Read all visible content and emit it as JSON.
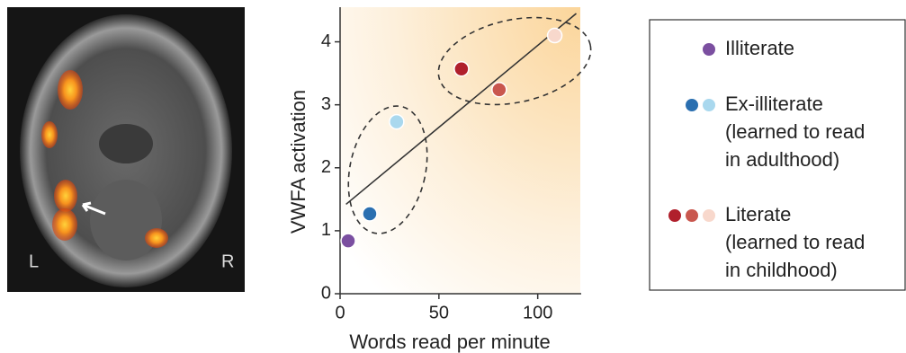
{
  "chart_data": {
    "type": "scatter",
    "image": {
      "left_label": "L",
      "right_label": "R"
    },
    "xlabel": "Words read per minute",
    "ylabel": "VWFA activation",
    "xlim": [
      0,
      122
    ],
    "ylim": [
      0,
      4.55
    ],
    "xticks": [
      0,
      50,
      100
    ],
    "yticks": [
      0,
      1,
      2,
      3,
      4
    ],
    "fit_line": {
      "x": [
        3,
        119.5
      ],
      "y": [
        1.42,
        4.45
      ],
      "color": "#333333"
    },
    "series": [
      {
        "name": "Illiterate",
        "x": [
          4.1
        ],
        "values": [
          0.84
        ],
        "colors": [
          "#7b4fa0"
        ]
      },
      {
        "name": "Ex-illiterate",
        "note_lines": [
          "(learned to read",
          "in adulthood)"
        ],
        "x": [
          15,
          28.6
        ],
        "values": [
          1.27,
          2.73
        ],
        "colors": [
          "#2a6fb0",
          "#a9d8ee"
        ]
      },
      {
        "name": "Literate",
        "note_lines": [
          "(learned to read",
          "in childhood)"
        ],
        "x": [
          61.4,
          80.5,
          108.6
        ],
        "values": [
          3.57,
          3.24,
          4.1
        ],
        "colors": [
          "#b0202c",
          "#c9574e",
          "#f8d8cc"
        ]
      }
    ]
  }
}
